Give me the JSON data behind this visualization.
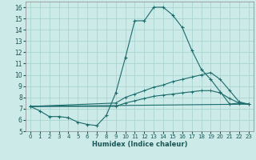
{
  "xlabel": "Humidex (Indice chaleur)",
  "bg_color": "#cceae7",
  "grid_color": "#aad4d0",
  "line_color": "#1a6b6b",
  "xlim": [
    -0.5,
    23.5
  ],
  "ylim": [
    5.0,
    16.5
  ],
  "yticks": [
    5,
    6,
    7,
    8,
    9,
    10,
    11,
    12,
    13,
    14,
    15,
    16
  ],
  "xticks": [
    0,
    1,
    2,
    3,
    4,
    5,
    6,
    7,
    8,
    9,
    10,
    11,
    12,
    13,
    14,
    15,
    16,
    17,
    18,
    19,
    20,
    21,
    22,
    23
  ],
  "line1_x": [
    0,
    1,
    2,
    3,
    4,
    5,
    6,
    7,
    8,
    9,
    10,
    11,
    12,
    13,
    14,
    15,
    16,
    17,
    18,
    19,
    20,
    21,
    22,
    23
  ],
  "line1_y": [
    7.2,
    6.8,
    6.3,
    6.3,
    6.2,
    5.8,
    5.6,
    5.5,
    6.4,
    8.4,
    11.5,
    14.8,
    14.8,
    16.0,
    16.0,
    15.3,
    14.2,
    12.2,
    10.5,
    9.6,
    8.5,
    7.4,
    7.5,
    7.4
  ],
  "line2_x": [
    0,
    9,
    10,
    11,
    12,
    13,
    14,
    15,
    16,
    17,
    18,
    19,
    20,
    21,
    22,
    23
  ],
  "line2_y": [
    7.2,
    7.5,
    8.0,
    8.3,
    8.6,
    8.9,
    9.1,
    9.4,
    9.6,
    9.8,
    10.0,
    10.2,
    9.6,
    8.6,
    7.6,
    7.4
  ],
  "line3_x": [
    0,
    9,
    10,
    11,
    12,
    13,
    14,
    15,
    16,
    17,
    18,
    19,
    20,
    21,
    22,
    23
  ],
  "line3_y": [
    7.2,
    7.2,
    7.5,
    7.7,
    7.9,
    8.1,
    8.2,
    8.3,
    8.4,
    8.5,
    8.6,
    8.6,
    8.4,
    7.9,
    7.5,
    7.4
  ],
  "line4_x": [
    0,
    23
  ],
  "line4_y": [
    7.2,
    7.4
  ]
}
